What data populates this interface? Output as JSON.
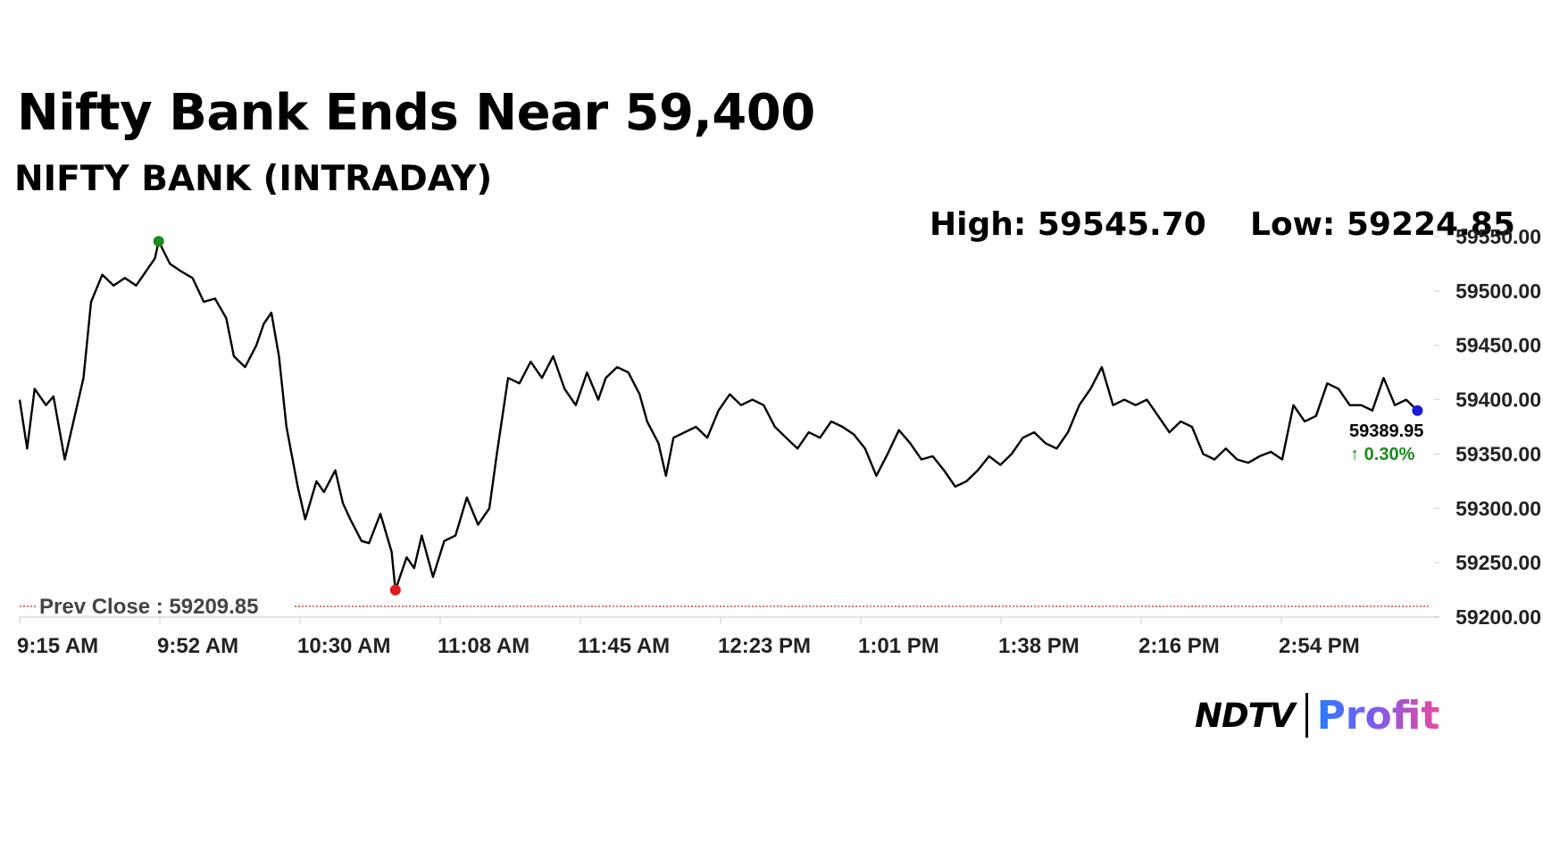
{
  "title": "Nifty Bank Ends Near 59,400",
  "subtitle": "NIFTY BANK (INTRADAY)",
  "stats": {
    "high": "High: 59545.70",
    "low": "Low: 59224.85"
  },
  "chart_data": {
    "type": "line",
    "title": "Nifty Bank Ends Near 59,400",
    "subtitle": "NIFTY BANK (INTRADAY)",
    "x_ticks": [
      "9:15 AM",
      "9:52 AM",
      "10:30 AM",
      "11:08 AM",
      "11:45 AM",
      "12:23 PM",
      "1:01 PM",
      "1:38 PM",
      "2:16 PM",
      "2:54 PM"
    ],
    "y_ticks": [
      "59200.00",
      "59250.00",
      "59300.00",
      "59350.00",
      "59400.00",
      "59450.00",
      "59500.00",
      "59550.00"
    ],
    "ylim": [
      59200,
      59550
    ],
    "x_range": [
      "09:15",
      "15:30"
    ],
    "series": [
      {
        "color": "#000000",
        "points": [
          [
            "09:15",
            59400
          ],
          [
            "09:17",
            59355
          ],
          [
            "09:19",
            59410
          ],
          [
            "09:22",
            59395
          ],
          [
            "09:24",
            59403
          ],
          [
            "09:27",
            59345
          ],
          [
            "09:30",
            59390
          ],
          [
            "09:32",
            59420
          ],
          [
            "09:34",
            59490
          ],
          [
            "09:37",
            59515
          ],
          [
            "09:40",
            59505
          ],
          [
            "09:43",
            59512
          ],
          [
            "09:46",
            59505
          ],
          [
            "09:48",
            59515
          ],
          [
            "09:51",
            59530
          ],
          [
            "09:52",
            59545.7
          ],
          [
            "09:55",
            59525
          ],
          [
            "09:58",
            59518
          ],
          [
            "10:01",
            59512
          ],
          [
            "10:04",
            59490
          ],
          [
            "10:07",
            59493
          ],
          [
            "10:10",
            59475
          ],
          [
            "10:12",
            59440
          ],
          [
            "10:15",
            59430
          ],
          [
            "10:18",
            59450
          ],
          [
            "10:20",
            59470
          ],
          [
            "10:22",
            59480
          ],
          [
            "10:24",
            59440
          ],
          [
            "10:26",
            59375
          ],
          [
            "10:29",
            59320
          ],
          [
            "10:31",
            59290
          ],
          [
            "10:34",
            59325
          ],
          [
            "10:36",
            59315
          ],
          [
            "10:39",
            59335
          ],
          [
            "10:41",
            59305
          ],
          [
            "10:43",
            59290
          ],
          [
            "10:46",
            59270
          ],
          [
            "10:48",
            59268
          ],
          [
            "10:51",
            59295
          ],
          [
            "10:54",
            59260
          ],
          [
            "10:55",
            59224.85
          ],
          [
            "10:58",
            59255
          ],
          [
            "11:00",
            59245
          ],
          [
            "11:02",
            59275
          ],
          [
            "11:05",
            59237
          ],
          [
            "11:08",
            59270
          ],
          [
            "11:11",
            59275
          ],
          [
            "11:14",
            59310
          ],
          [
            "11:17",
            59285
          ],
          [
            "11:20",
            59300
          ],
          [
            "11:22",
            59350
          ],
          [
            "11:25",
            59420
          ],
          [
            "11:28",
            59415
          ],
          [
            "11:31",
            59435
          ],
          [
            "11:34",
            59420
          ],
          [
            "11:37",
            59440
          ],
          [
            "11:40",
            59410
          ],
          [
            "11:43",
            59395
          ],
          [
            "11:46",
            59425
          ],
          [
            "11:49",
            59400
          ],
          [
            "11:51",
            59420
          ],
          [
            "11:54",
            59430
          ],
          [
            "11:57",
            59425
          ],
          [
            "12:00",
            59405
          ],
          [
            "12:02",
            59380
          ],
          [
            "12:05",
            59360
          ],
          [
            "12:07",
            59330
          ],
          [
            "12:09",
            59365
          ],
          [
            "12:12",
            59370
          ],
          [
            "12:15",
            59375
          ],
          [
            "12:18",
            59365
          ],
          [
            "12:21",
            59390
          ],
          [
            "12:24",
            59405
          ],
          [
            "12:27",
            59395
          ],
          [
            "12:30",
            59400
          ],
          [
            "12:33",
            59395
          ],
          [
            "12:36",
            59375
          ],
          [
            "12:39",
            59365
          ],
          [
            "12:42",
            59355
          ],
          [
            "12:45",
            59370
          ],
          [
            "12:48",
            59365
          ],
          [
            "12:51",
            59380
          ],
          [
            "12:54",
            59375
          ],
          [
            "12:57",
            59368
          ],
          [
            "13:00",
            59355
          ],
          [
            "13:03",
            59330
          ],
          [
            "13:06",
            59350
          ],
          [
            "13:09",
            59372
          ],
          [
            "13:12",
            59360
          ],
          [
            "13:15",
            59345
          ],
          [
            "13:18",
            59348
          ],
          [
            "13:21",
            59335
          ],
          [
            "13:24",
            59320
          ],
          [
            "13:27",
            59325
          ],
          [
            "13:30",
            59335
          ],
          [
            "13:33",
            59348
          ],
          [
            "13:36",
            59340
          ],
          [
            "13:39",
            59350
          ],
          [
            "13:42",
            59365
          ],
          [
            "13:45",
            59370
          ],
          [
            "13:48",
            59360
          ],
          [
            "13:51",
            59355
          ],
          [
            "13:54",
            59370
          ],
          [
            "13:57",
            59395
          ],
          [
            "14:00",
            59410
          ],
          [
            "14:03",
            59430
          ],
          [
            "14:06",
            59395
          ],
          [
            "14:09",
            59400
          ],
          [
            "14:12",
            59395
          ],
          [
            "14:15",
            59400
          ],
          [
            "14:18",
            59385
          ],
          [
            "14:21",
            59370
          ],
          [
            "14:24",
            59380
          ],
          [
            "14:27",
            59375
          ],
          [
            "14:30",
            59350
          ],
          [
            "14:33",
            59345
          ],
          [
            "14:36",
            59355
          ],
          [
            "14:39",
            59345
          ],
          [
            "14:42",
            59342
          ],
          [
            "14:45",
            59348
          ],
          [
            "14:48",
            59352
          ],
          [
            "14:51",
            59345
          ],
          [
            "14:54",
            59395
          ],
          [
            "14:57",
            59380
          ],
          [
            "15:00",
            59385
          ],
          [
            "15:03",
            59415
          ],
          [
            "15:06",
            59410
          ],
          [
            "15:09",
            59395
          ],
          [
            "15:12",
            59395
          ],
          [
            "15:15",
            59390
          ],
          [
            "15:18",
            59420
          ],
          [
            "15:21",
            59395
          ],
          [
            "15:24",
            59400
          ],
          [
            "15:27",
            59389.95
          ]
        ]
      }
    ],
    "high": {
      "time": "09:52",
      "value": 59545.7,
      "color": "#1a8a1a"
    },
    "low": {
      "time": "10:55",
      "value": 59224.85,
      "color": "#e01b1b"
    },
    "last": {
      "time": "15:27",
      "value": 59389.95,
      "color": "#1a1adb"
    },
    "prev_close": {
      "value": 59209.85,
      "color": "#c02a2a"
    },
    "last_price_label": "59389.95",
    "change_label": "↑ 0.30%",
    "change_color": "#1a8a1a",
    "prev_close_label": "Prev Close : 59209.85",
    "grid": false
  },
  "logo": {
    "ndtv": "NDTV",
    "profit": "Profit"
  }
}
